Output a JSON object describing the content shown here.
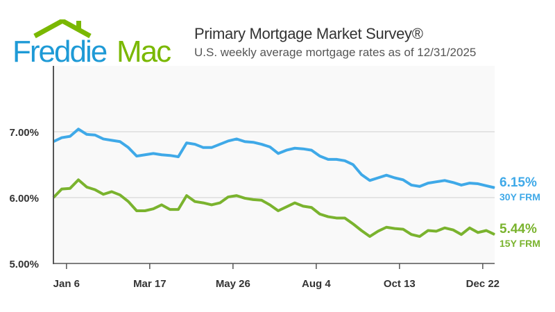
{
  "logo": {
    "text_part1": "Freddie",
    "text_part2": "Mac",
    "colors": {
      "blue": "#1e9ad6",
      "green": "#7ab800"
    }
  },
  "header": {
    "title": "Primary Mortgage Market Survey®",
    "subtitle": "U.S. weekly average mortgage rates as of 12/31/2025"
  },
  "chart_data": {
    "type": "line",
    "title": "Primary Mortgage Market Survey®",
    "subtitle": "U.S. weekly average mortgage rates as of 12/31/2025",
    "ylim": [
      5,
      8
    ],
    "yticks": [
      "5.00%",
      "6.00%",
      "7.00%"
    ],
    "ytick_values": [
      5,
      6,
      7
    ],
    "xticks": [
      "Jan 6",
      "Mar 17",
      "May 26",
      "Aug 4",
      "Oct 13",
      "Dec 22"
    ],
    "xtick_week_index": [
      1.57,
      11.57,
      21.57,
      31.57,
      41.57,
      51.57
    ],
    "grid": true,
    "x": [
      "2024-12-26",
      "2025-01-02",
      "2025-01-09",
      "2025-01-16",
      "2025-01-23",
      "2025-01-30",
      "2025-02-06",
      "2025-02-13",
      "2025-02-20",
      "2025-02-27",
      "2025-03-06",
      "2025-03-13",
      "2025-03-20",
      "2025-03-27",
      "2025-04-03",
      "2025-04-10",
      "2025-04-17",
      "2025-04-24",
      "2025-05-01",
      "2025-05-08",
      "2025-05-15",
      "2025-05-22",
      "2025-05-29",
      "2025-06-05",
      "2025-06-12",
      "2025-06-18",
      "2025-06-26",
      "2025-07-03",
      "2025-07-10",
      "2025-07-17",
      "2025-07-24",
      "2025-07-31",
      "2025-08-07",
      "2025-08-14",
      "2025-08-21",
      "2025-08-28",
      "2025-09-04",
      "2025-09-11",
      "2025-09-18",
      "2025-09-25",
      "2025-10-02",
      "2025-10-09",
      "2025-10-16",
      "2025-10-23",
      "2025-10-30",
      "2025-11-06",
      "2025-11-13",
      "2025-11-20",
      "2025-11-26",
      "2025-12-04",
      "2025-12-11",
      "2025-12-18",
      "2025-12-24",
      "2025-12-31"
    ],
    "series": [
      {
        "name": "30Y FRM",
        "color": "#3fa9e8",
        "end_label": "6.15%",
        "values": [
          6.85,
          6.91,
          6.93,
          7.04,
          6.96,
          6.95,
          6.89,
          6.87,
          6.85,
          6.76,
          6.63,
          6.65,
          6.67,
          6.65,
          6.64,
          6.62,
          6.83,
          6.81,
          6.76,
          6.76,
          6.81,
          6.86,
          6.89,
          6.85,
          6.84,
          6.81,
          6.77,
          6.67,
          6.72,
          6.75,
          6.74,
          6.72,
          6.63,
          6.58,
          6.58,
          6.56,
          6.5,
          6.35,
          6.26,
          6.3,
          6.34,
          6.3,
          6.27,
          6.19,
          6.17,
          6.22,
          6.24,
          6.26,
          6.23,
          6.19,
          6.22,
          6.21,
          6.18,
          6.15
        ]
      },
      {
        "name": "15Y FRM",
        "color": "#7ab32e",
        "end_label": "5.44%",
        "values": [
          6.0,
          6.13,
          6.14,
          6.27,
          6.16,
          6.12,
          6.05,
          6.09,
          6.04,
          5.94,
          5.8,
          5.8,
          5.83,
          5.89,
          5.82,
          5.82,
          6.03,
          5.94,
          5.92,
          5.89,
          5.92,
          6.01,
          6.03,
          5.99,
          5.97,
          5.96,
          5.89,
          5.8,
          5.86,
          5.92,
          5.87,
          5.85,
          5.75,
          5.71,
          5.69,
          5.69,
          5.6,
          5.5,
          5.41,
          5.49,
          5.55,
          5.53,
          5.52,
          5.44,
          5.41,
          5.5,
          5.49,
          5.54,
          5.51,
          5.44,
          5.54,
          5.47,
          5.5,
          5.44
        ]
      }
    ]
  }
}
